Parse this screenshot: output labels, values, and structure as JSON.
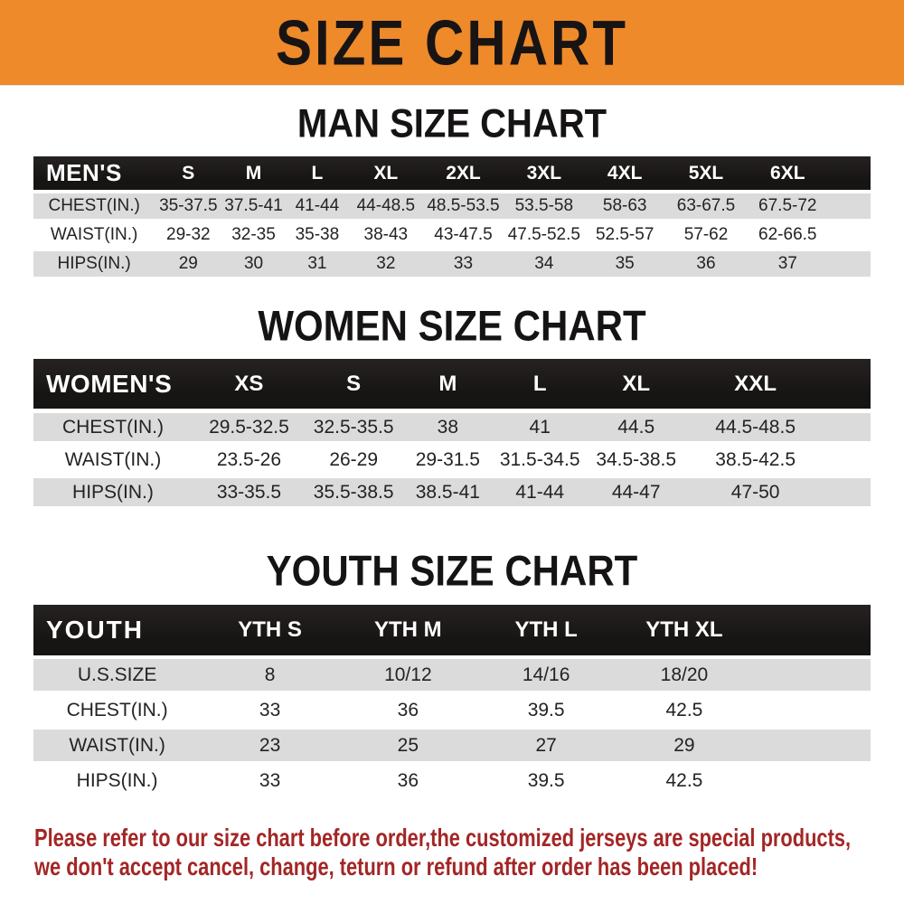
{
  "banner": {
    "title": "SIZE CHART"
  },
  "man_chart": {
    "title": "MAN SIZE CHART",
    "header_label": "MEN'S",
    "columns": [
      "S",
      "M",
      "L",
      "XL",
      "2XL",
      "3XL",
      "4XL",
      "5XL",
      "6XL"
    ],
    "rows": [
      {
        "label": "CHEST(IN.)",
        "values": [
          "35-37.5",
          "37.5-41",
          "41-44",
          "44-48.5",
          "48.5-53.5",
          "53.5-58",
          "58-63",
          "63-67.5",
          "67.5-72"
        ]
      },
      {
        "label": "WAIST(IN.)",
        "values": [
          "29-32",
          "32-35",
          "35-38",
          "38-43",
          "43-47.5",
          "47.5-52.5",
          "52.5-57",
          "57-62",
          "62-66.5"
        ]
      },
      {
        "label": "HIPS(IN.)",
        "values": [
          "29",
          "30",
          "31",
          "32",
          "33",
          "34",
          "35",
          "36",
          "37"
        ]
      }
    ]
  },
  "women_chart": {
    "title": "WOMEN SIZE CHART",
    "header_label": "WOMEN'S",
    "columns": [
      "XS",
      "S",
      "M",
      "L",
      "XL",
      "XXL"
    ],
    "rows": [
      {
        "label": "CHEST(IN.)",
        "values": [
          "29.5-32.5",
          "32.5-35.5",
          "38",
          "41",
          "44.5",
          "44.5-48.5"
        ]
      },
      {
        "label": "WAIST(IN.)",
        "values": [
          "23.5-26",
          "26-29",
          "29-31.5",
          "31.5-34.5",
          "34.5-38.5",
          "38.5-42.5"
        ]
      },
      {
        "label": "HIPS(IN.)",
        "values": [
          "33-35.5",
          "35.5-38.5",
          "38.5-41",
          "41-44",
          "44-47",
          "47-50"
        ]
      }
    ]
  },
  "youth_chart": {
    "title": "YOUTH SIZE CHART",
    "header_label": "YOUTH",
    "columns": [
      "YTH S",
      "YTH M",
      "YTH L",
      "YTH XL"
    ],
    "rows": [
      {
        "label": "U.S.SIZE",
        "values": [
          "8",
          "10/12",
          "14/16",
          "18/20"
        ]
      },
      {
        "label": "CHEST(IN.)",
        "values": [
          "33",
          "36",
          "39.5",
          "42.5"
        ]
      },
      {
        "label": "WAIST(IN.)",
        "values": [
          "23",
          "25",
          "27",
          "29"
        ]
      },
      {
        "label": "HIPS(IN.)",
        "values": [
          "33",
          "36",
          "39.5",
          "42.5"
        ]
      }
    ]
  },
  "footer_note": {
    "line1": "Please refer to our size chart before order,the customized jerseys are special products,",
    "line2": "we don't accept cancel, change, teturn or refund after order has been placed!"
  },
  "colors": {
    "banner_orange": "#EE8A2A",
    "header_black": "#1B1919",
    "row_gray": "#DBDBDB",
    "note_red": "#A32626"
  }
}
